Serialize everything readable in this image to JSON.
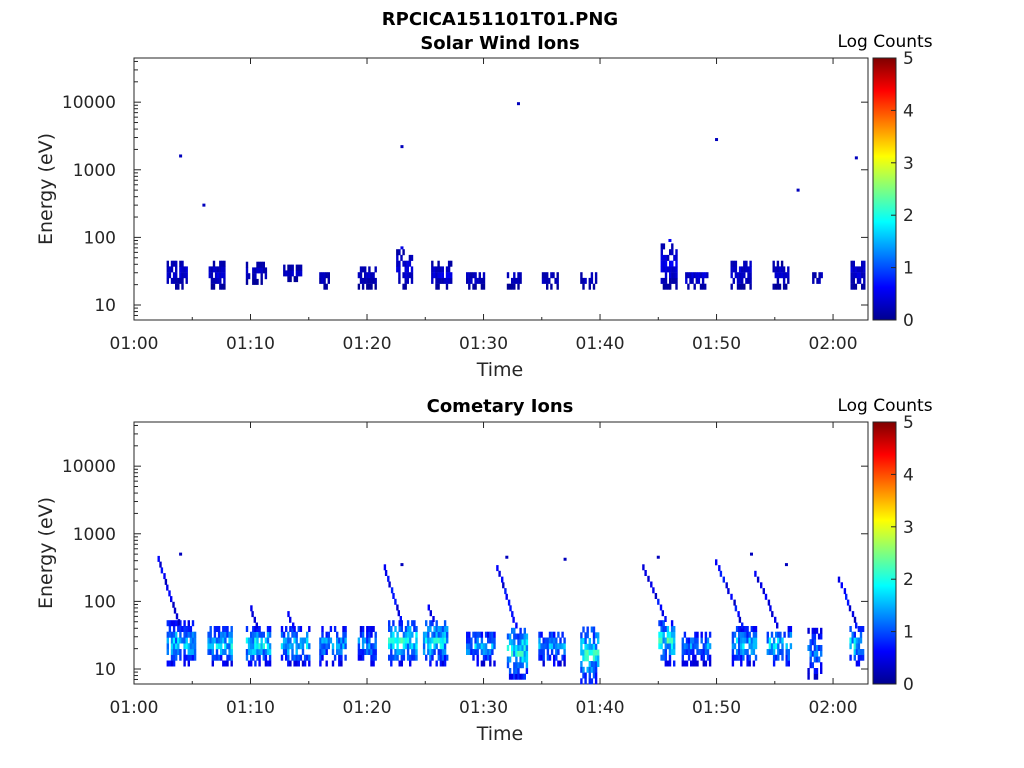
{
  "figure_title": "RPCICA151101T01.PNG",
  "chart_data": [
    {
      "type": "heatmap",
      "title": "Solar Wind Ions",
      "xlabel": "Time",
      "ylabel": "Energy (eV)",
      "y_scale": "log",
      "ylim": [
        6,
        45000
      ],
      "x_ticks": [
        "01:00",
        "01:10",
        "01:20",
        "01:30",
        "01:40",
        "01:50",
        "02:00"
      ],
      "xlim_minutes_from_0100": [
        0,
        63
      ],
      "y_ticks": [
        "10",
        "100",
        "1000",
        "10000"
      ],
      "colorbar": {
        "label": "Log Counts",
        "range": [
          0,
          5
        ],
        "ticks": [
          "0",
          "1",
          "2",
          "3",
          "4",
          "5"
        ],
        "colormap": "jet"
      },
      "sample_points": [
        {
          "t": "01:04",
          "energy_eV": 1600,
          "log_counts": 0.3
        },
        {
          "t": "01:06",
          "energy_eV": 300,
          "log_counts": 0.3
        },
        {
          "t": "01:23",
          "energy_eV": 2200,
          "log_counts": 0.3
        },
        {
          "t": "01:33",
          "energy_eV": 9500,
          "log_counts": 0.3
        },
        {
          "t": "01:50",
          "energy_eV": 2800,
          "log_counts": 0.3
        },
        {
          "t": "01:57",
          "energy_eV": 500,
          "log_counts": 0.3
        },
        {
          "t": "02:02",
          "energy_eV": 1500,
          "log_counts": 0.3
        },
        {
          "t": "01:46",
          "energy_eV": 90,
          "log_counts": 0.6
        },
        {
          "t": "01:23",
          "energy_eV": 70,
          "log_counts": 0.5
        }
      ],
      "bursts": [
        {
          "t0": 2.8,
          "t1": 4.5,
          "emin": 17,
          "emax": 45,
          "level": 0.4
        },
        {
          "t0": 6.4,
          "t1": 7.8,
          "emin": 17,
          "emax": 40,
          "level": 0.4
        },
        {
          "t0": 9.6,
          "t1": 11.3,
          "emin": 20,
          "emax": 40,
          "level": 0.35
        },
        {
          "t0": 12.8,
          "t1": 14.4,
          "emin": 22,
          "emax": 35,
          "level": 0.35
        },
        {
          "t0": 15.9,
          "t1": 16.8,
          "emin": 17,
          "emax": 30,
          "level": 0.35
        },
        {
          "t0": 19.2,
          "t1": 20.8,
          "emin": 17,
          "emax": 35,
          "level": 0.35
        },
        {
          "t0": 22.5,
          "t1": 23.8,
          "emin": 17,
          "emax": 60,
          "level": 0.45
        },
        {
          "t0": 25.5,
          "t1": 27.2,
          "emin": 17,
          "emax": 40,
          "level": 0.45
        },
        {
          "t0": 28.5,
          "t1": 30.2,
          "emin": 17,
          "emax": 30,
          "level": 0.35
        },
        {
          "t0": 32.0,
          "t1": 33.2,
          "emin": 17,
          "emax": 30,
          "level": 0.35
        },
        {
          "t0": 35.0,
          "t1": 36.3,
          "emin": 17,
          "emax": 30,
          "level": 0.35
        },
        {
          "t0": 38.3,
          "t1": 39.6,
          "emin": 17,
          "emax": 30,
          "level": 0.35
        },
        {
          "t0": 45.2,
          "t1": 46.5,
          "emin": 17,
          "emax": 80,
          "level": 0.5
        },
        {
          "t0": 47.3,
          "t1": 49.1,
          "emin": 17,
          "emax": 30,
          "level": 0.5
        },
        {
          "t0": 51.2,
          "t1": 53.0,
          "emin": 17,
          "emax": 45,
          "level": 0.45
        },
        {
          "t0": 54.8,
          "t1": 56.2,
          "emin": 17,
          "emax": 40,
          "level": 0.4
        },
        {
          "t0": 58.2,
          "t1": 59.0,
          "emin": 17,
          "emax": 30,
          "level": 0.35
        },
        {
          "t0": 61.5,
          "t1": 62.6,
          "emin": 17,
          "emax": 45,
          "level": 0.45
        }
      ]
    },
    {
      "type": "heatmap",
      "title": "Cometary Ions",
      "xlabel": "Time",
      "ylabel": "Energy (eV)",
      "y_scale": "log",
      "ylim": [
        6,
        45000
      ],
      "x_ticks": [
        "01:00",
        "01:10",
        "01:20",
        "01:30",
        "01:40",
        "01:50",
        "02:00"
      ],
      "xlim_minutes_from_0100": [
        0,
        63
      ],
      "y_ticks": [
        "10",
        "100",
        "1000",
        "10000"
      ],
      "colorbar": {
        "label": "Log Counts",
        "range": [
          0,
          5
        ],
        "ticks": [
          "0",
          "1",
          "2",
          "3",
          "4",
          "5"
        ],
        "colormap": "jet"
      },
      "sample_points": [
        {
          "t": "01:04",
          "energy_eV": 500,
          "log_counts": 0.3
        },
        {
          "t": "01:23",
          "energy_eV": 350,
          "log_counts": 0.3
        },
        {
          "t": "01:32",
          "energy_eV": 450,
          "log_counts": 0.3
        },
        {
          "t": "01:37",
          "energy_eV": 420,
          "log_counts": 0.3
        },
        {
          "t": "01:45",
          "energy_eV": 450,
          "log_counts": 0.3
        },
        {
          "t": "01:53",
          "energy_eV": 500,
          "log_counts": 0.3
        },
        {
          "t": "01:56",
          "energy_eV": 350,
          "log_counts": 0.3
        }
      ],
      "bursts": [
        {
          "t0": 2.8,
          "t1": 5.2,
          "emin": 11,
          "emax": 45,
          "level": 1.6,
          "plume": 400
        },
        {
          "t0": 6.3,
          "t1": 8.4,
          "emin": 11,
          "emax": 40,
          "level": 1.7
        },
        {
          "t0": 9.6,
          "t1": 11.7,
          "emin": 11,
          "emax": 40,
          "level": 1.8,
          "plume": 80
        },
        {
          "t0": 12.6,
          "t1": 15.0,
          "emin": 11,
          "emax": 40,
          "level": 1.6,
          "plume": 60
        },
        {
          "t0": 15.9,
          "t1": 18.1,
          "emin": 11,
          "emax": 40,
          "level": 1.4
        },
        {
          "t0": 19.2,
          "t1": 20.8,
          "emin": 11,
          "emax": 40,
          "level": 1.3
        },
        {
          "t0": 21.8,
          "t1": 24.3,
          "emin": 11,
          "emax": 50,
          "level": 1.8,
          "plume": 300
        },
        {
          "t0": 24.8,
          "t1": 26.8,
          "emin": 11,
          "emax": 50,
          "level": 1.8,
          "plume": 80
        },
        {
          "t0": 28.5,
          "t1": 31.0,
          "emin": 11,
          "emax": 35,
          "level": 1.4
        },
        {
          "t0": 32.0,
          "t1": 33.8,
          "emin": 7,
          "emax": 40,
          "level": 1.9,
          "plume": 300
        },
        {
          "t0": 34.7,
          "t1": 36.9,
          "emin": 11,
          "emax": 35,
          "level": 1.4
        },
        {
          "t0": 38.3,
          "t1": 39.8,
          "emin": 6,
          "emax": 40,
          "level": 1.9
        },
        {
          "t0": 45.0,
          "t1": 46.3,
          "emin": 11,
          "emax": 50,
          "level": 1.9,
          "plume": 350
        },
        {
          "t0": 47.0,
          "t1": 49.5,
          "emin": 11,
          "emax": 35,
          "level": 1.3
        },
        {
          "t0": 51.3,
          "t1": 53.3,
          "emin": 11,
          "emax": 40,
          "level": 1.6,
          "plume": 400
        },
        {
          "t0": 54.3,
          "t1": 56.3,
          "emin": 11,
          "emax": 40,
          "level": 1.7,
          "plume": 250
        },
        {
          "t0": 57.8,
          "t1": 59.0,
          "emin": 7,
          "emax": 35,
          "level": 1.2
        },
        {
          "t0": 61.4,
          "t1": 62.6,
          "emin": 11,
          "emax": 40,
          "level": 1.7,
          "plume": 200
        }
      ]
    }
  ]
}
